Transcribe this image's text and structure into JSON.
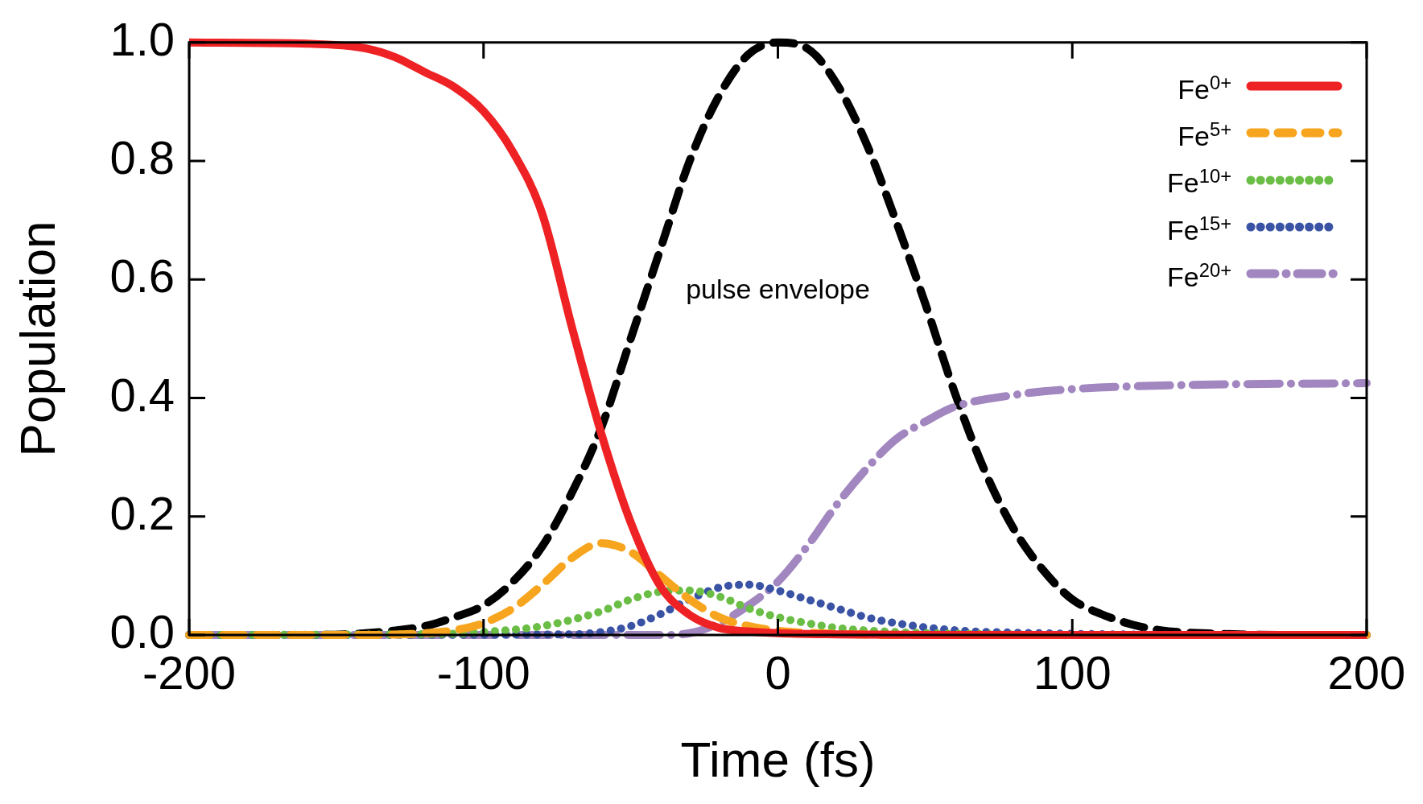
{
  "chart_data": {
    "type": "line",
    "xlabel": "Time (fs)",
    "ylabel": "Population",
    "xlim": [
      -200,
      200
    ],
    "xticks": [
      -200,
      -100,
      0,
      100,
      200
    ],
    "ylim": [
      0,
      1
    ],
    "yticks": [
      {
        "value": 0,
        "label": "0.0"
      },
      {
        "value": 0.2,
        "label": "0.2"
      },
      {
        "value": 0.4,
        "label": "0.4"
      },
      {
        "value": 0.6,
        "label": "0.6"
      },
      {
        "value": 0.8,
        "label": "0.8"
      },
      {
        "value": 1,
        "label": "1.0"
      }
    ],
    "grid": false,
    "legend": "top right",
    "marker": "none",
    "annotations": [
      "pulse envelope"
    ],
    "series": [
      {
        "name": "Fe$^{0+}$",
        "color": "#ee2224",
        "line_style": "solid",
        "x": [
          -200,
          -160,
          -140,
          -130,
          -120,
          -110,
          -100,
          -90,
          -80,
          -70,
          -60,
          -50,
          -40,
          -30,
          -20,
          -10,
          0,
          20,
          50,
          100,
          200
        ],
        "values": [
          1,
          0.998,
          0.99,
          0.975,
          0.95,
          0.925,
          0.884,
          0.815,
          0.71,
          0.52,
          0.34,
          0.19,
          0.083,
          0.034,
          0.012,
          0.006,
          0.003,
          0.001,
          0,
          0,
          0
        ]
      },
      {
        "name": "Fe$^{5+}$",
        "color": "#f7a51f",
        "line_style": "dashed",
        "x": [
          -200,
          -140,
          -120,
          -110,
          -100,
          -90,
          -80,
          -70,
          -60,
          -50,
          -40,
          -30,
          -20,
          -10,
          0,
          20,
          40,
          100,
          200
        ],
        "values": [
          0,
          0,
          0.003,
          0.008,
          0.02,
          0.045,
          0.085,
          0.13,
          0.155,
          0.14,
          0.1,
          0.06,
          0.03,
          0.015,
          0.007,
          0.002,
          0,
          0,
          0
        ]
      },
      {
        "name": "Fe$^{10+}$",
        "color": "#6abd45",
        "line_style": "dotted",
        "x": [
          -200,
          -110,
          -100,
          -80,
          -60,
          -50,
          -40,
          -30,
          -20,
          -10,
          0,
          10,
          20,
          40,
          60,
          100,
          200
        ],
        "values": [
          0,
          0.002,
          0.005,
          0.015,
          0.04,
          0.06,
          0.073,
          0.075,
          0.065,
          0.045,
          0.03,
          0.02,
          0.012,
          0.005,
          0.002,
          0,
          0
        ]
      },
      {
        "name": "Fe$^{15+}$",
        "color": "#3a53a4",
        "line_style": "dotted",
        "x": [
          -200,
          -70,
          -60,
          -50,
          -40,
          -30,
          -20,
          -10,
          0,
          10,
          20,
          30,
          40,
          60,
          80,
          100,
          150,
          200
        ],
        "values": [
          0,
          0.001,
          0.005,
          0.015,
          0.035,
          0.06,
          0.08,
          0.085,
          0.075,
          0.06,
          0.045,
          0.03,
          0.02,
          0.008,
          0.004,
          0.002,
          0,
          0
        ]
      },
      {
        "name": "Fe$^{20+}$",
        "color": "#a286bf",
        "line_style": "dashdot",
        "x": [
          -200,
          -40,
          -30,
          -20,
          -10,
          0,
          10,
          20,
          30,
          40,
          50,
          60,
          80,
          100,
          140,
          200
        ],
        "values": [
          0,
          0,
          0.003,
          0.02,
          0.05,
          0.09,
          0.15,
          0.22,
          0.28,
          0.33,
          0.36,
          0.385,
          0.405,
          0.415,
          0.422,
          0.425
        ]
      },
      {
        "color": "#000000",
        "line_style": "dashed",
        "x": [
          -200,
          -160,
          -140,
          -120,
          -110,
          -100,
          -90,
          -80,
          -70,
          -60,
          -50,
          -40,
          -30,
          -20,
          -10,
          0,
          10,
          20,
          30,
          40,
          50,
          60,
          70,
          80,
          90,
          100,
          110,
          120,
          130,
          150,
          170,
          200
        ],
        "values": [
          0,
          0,
          0.003,
          0.015,
          0.03,
          0.05,
          0.09,
          0.15,
          0.24,
          0.35,
          0.5,
          0.65,
          0.8,
          0.91,
          0.98,
          1,
          0.99,
          0.93,
          0.83,
          0.7,
          0.56,
          0.41,
          0.28,
          0.18,
          0.11,
          0.06,
          0.035,
          0.018,
          0.008,
          0.002,
          0,
          0
        ]
      }
    ]
  }
}
